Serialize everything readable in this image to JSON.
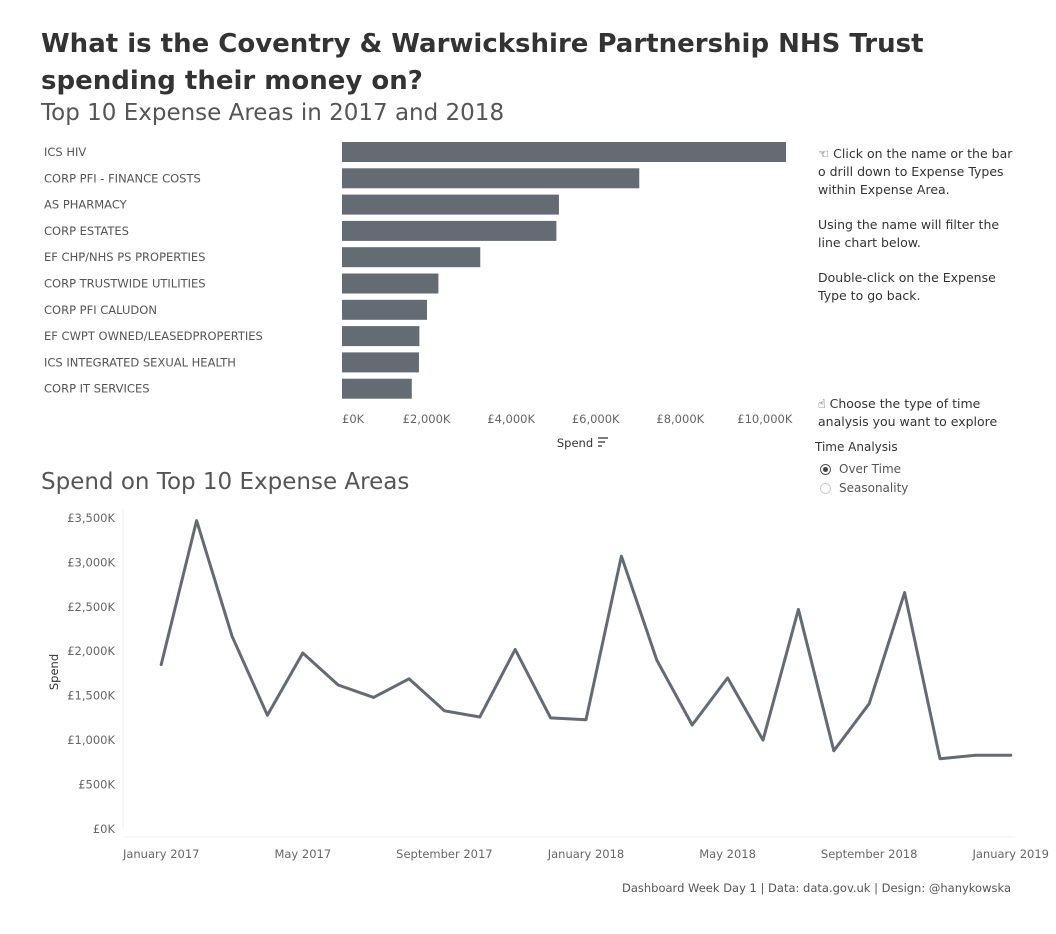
{
  "header": {
    "title": "What is the Coventry & Warwickshire Partnership NHS Trust spending their money on?",
    "bar_subtitle": "Top 10 Expense Areas in 2017 and 2018",
    "line_subtitle": "Spend on Top 10 Expense Areas"
  },
  "notes": {
    "click_lines": [
      "☜ Click on the name or the bar o drill down to Expense Types within Expense Area.",
      "Using the name will filter the line chart below.",
      "Double-click on the Expense Type to go back."
    ],
    "time_text": "☝ Choose the type of time analysis you want to explore"
  },
  "time_analysis": {
    "label": "Time Analysis",
    "options": [
      "Over Time",
      "Seasonality"
    ],
    "selected": "Over Time"
  },
  "footer": "Dashboard Week Day 1 | Data: data.gov.uk | Design: @hanykowska",
  "colors": {
    "bar": "#646b73",
    "line": "#646b73",
    "axis_text": "#666666",
    "grid": "#eeeeee"
  },
  "chart_data": [
    {
      "type": "bar",
      "orientation": "horizontal",
      "categories": [
        "ICS HIV",
        "CORP PFI - FINANCE COSTS",
        "AS PHARMACY",
        "CORP ESTATES",
        "EF CHP/NHS PS PROPERTIES",
        "CORP TRUSTWIDE UTILITIES",
        "CORP PFI CALUDON",
        "EF CWPT OWNED/LEASEDPROPERTIES",
        "ICS INTEGRATED SEXUAL HEALTH",
        "CORP IT SERVICES"
      ],
      "values": [
        10500,
        7030,
        5130,
        5070,
        3270,
        2280,
        2010,
        1830,
        1820,
        1650
      ],
      "xlabel": "Spend",
      "xlim": [
        0,
        10600
      ],
      "ticks": [
        0,
        2000,
        4000,
        6000,
        8000,
        10000
      ],
      "tick_labels": [
        "£0K",
        "£2,000K",
        "£4,000K",
        "£6,000K",
        "£8,000K",
        "£10,000K"
      ]
    },
    {
      "type": "line",
      "ylabel": "Spend",
      "ylim": [
        0,
        3600
      ],
      "yticks": [
        0,
        500,
        1000,
        1500,
        2000,
        2500,
        3000,
        3500
      ],
      "ytick_labels": [
        "£0K",
        "£500K",
        "£1,000K",
        "£1,500K",
        "£2,000K",
        "£2,500K",
        "£3,000K",
        "£3,500K"
      ],
      "x_range": [
        -1.08,
        24.12
      ],
      "x": [
        0,
        1,
        2,
        3,
        4,
        5,
        6,
        7,
        8,
        9,
        10,
        11,
        12,
        13,
        14,
        15,
        16,
        17,
        18,
        19,
        20,
        21,
        22,
        23,
        24
      ],
      "x_dates": [
        "2017-01",
        "2017-02",
        "2017-03",
        "2017-04",
        "2017-05",
        "2017-06",
        "2017-07",
        "2017-08",
        "2017-09",
        "2017-10",
        "2017-11",
        "2017-12",
        "2018-01",
        "2018-02",
        "2018-03",
        "2018-04",
        "2018-05",
        "2018-06",
        "2018-07",
        "2018-08",
        "2018-09",
        "2018-10",
        "2018-11",
        "2018-12",
        "2019-01"
      ],
      "values": [
        1850,
        3470,
        2170,
        1280,
        1980,
        1620,
        1480,
        1690,
        1330,
        1260,
        2020,
        1250,
        1230,
        3070,
        1900,
        1170,
        1700,
        1000,
        2470,
        880,
        1410,
        2660,
        790,
        830,
        830
      ],
      "xtick_positions": [
        0,
        4,
        8,
        12,
        16,
        20,
        24
      ],
      "xtick_labels": [
        "January 2017",
        "May 2017",
        "September 2017",
        "January 2018",
        "May 2018",
        "September 2018",
        "January 2019"
      ]
    }
  ]
}
